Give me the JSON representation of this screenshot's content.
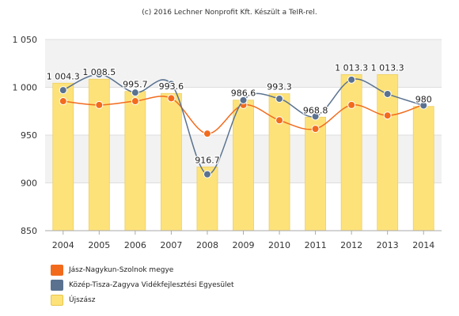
{
  "credit": "(c) 2016 Lechner Nonprofit Kft. Készült a TeIR-rel.",
  "chart_data": {
    "type": "bar",
    "categories": [
      "2004",
      "2005",
      "2006",
      "2007",
      "2008",
      "2009",
      "2010",
      "2011",
      "2012",
      "2013",
      "2014"
    ],
    "ylim": [
      850,
      1050
    ],
    "yticks": [
      850,
      900,
      950,
      1000,
      1050
    ],
    "ytick_labels": [
      "850",
      "900",
      "950",
      "1 000",
      "1 050"
    ],
    "grid": true,
    "legend_position": "bottom-left",
    "series": [
      {
        "name": "Jász-Nagykun-Szolnok megye",
        "type": "line",
        "color": "#f26b1d",
        "values": [
          985.5,
          981.5,
          985.5,
          988.5,
          951.5,
          981.5,
          965.5,
          956.5,
          981.5,
          970.5,
          982.0
        ]
      },
      {
        "name": "Közép-Tisza-Zagyva Vidékfejlesztési Egyesület",
        "type": "line",
        "color": "#5a7290",
        "values": [
          997.0,
          1013.5,
          994.5,
          1003.5,
          909.0,
          986.5,
          988.0,
          969.5,
          1008.0,
          993.0,
          981.0
        ]
      },
      {
        "name": "Újszász",
        "type": "bar",
        "color": "#fde27a",
        "values": [
          1004.3,
          1008.5,
          995.7,
          993.6,
          916.7,
          986.6,
          993.3,
          968.8,
          1013.3,
          1013.3,
          980.0
        ],
        "labels": [
          "1 004.3",
          "1 008.5",
          "995.7",
          "993.6",
          "916.7",
          "986.6",
          "993.3",
          "968.8",
          "1 013.3",
          "1 013.3",
          "980"
        ]
      }
    ]
  }
}
